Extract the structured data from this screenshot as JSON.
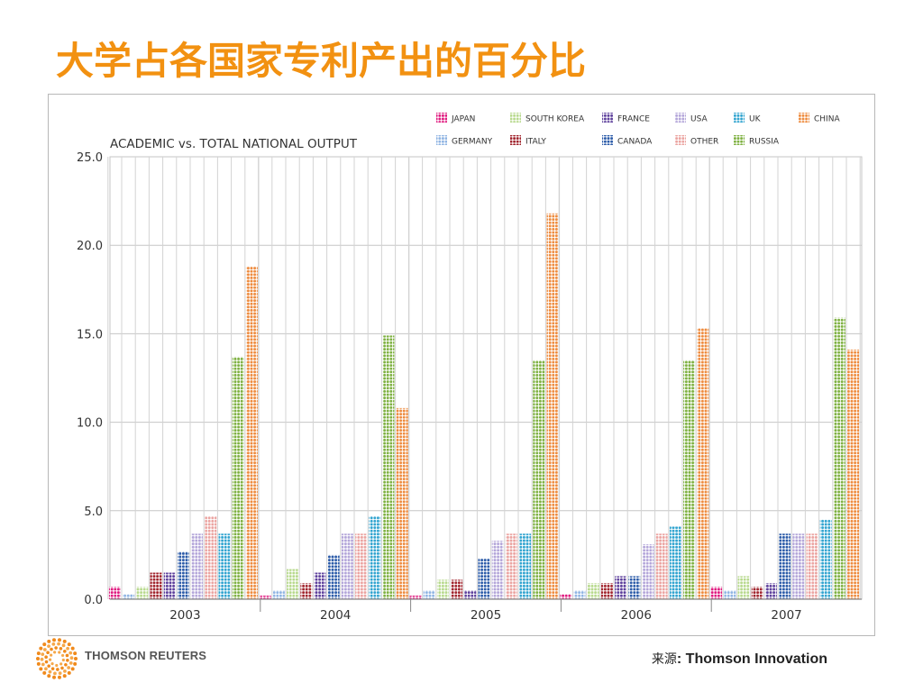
{
  "slide": {
    "title": "大学占各国家专利产出的百分比",
    "source_label": "来源",
    "source_value": ": Thomson Innovation",
    "logo_text": "THOMSON REUTERS",
    "logo_icon": "sunburst-logo-icon"
  },
  "chart_data": {
    "type": "bar",
    "title": "ACADEMIC vs. TOTAL NATIONAL OUTPUT",
    "xlabel": "",
    "ylabel": "",
    "ylim": [
      0,
      25
    ],
    "yticks": [
      "0.0",
      "5.0",
      "10.0",
      "15.0",
      "20.0",
      "25.0"
    ],
    "grid": true,
    "legend_position": "top-right",
    "bar_style": "dotted",
    "categories": [
      "2003",
      "2004",
      "2005",
      "2006",
      "2007"
    ],
    "series": [
      {
        "name": "JAPAN",
        "color": "#e0177e",
        "values": [
          0.7,
          0.2,
          0.2,
          0.3,
          0.7
        ]
      },
      {
        "name": "GERMANY",
        "color": "#8fb4e3",
        "values": [
          0.3,
          0.5,
          0.5,
          0.5,
          0.5
        ]
      },
      {
        "name": "SOUTH KOREA",
        "color": "#b7d98c",
        "values": [
          0.7,
          1.7,
          1.1,
          0.9,
          1.3
        ]
      },
      {
        "name": "ITALY",
        "color": "#a0222b",
        "values": [
          1.5,
          0.9,
          1.1,
          0.9,
          0.7
        ]
      },
      {
        "name": "FRANCE",
        "color": "#5c3e9b",
        "values": [
          1.5,
          1.5,
          0.5,
          1.3,
          0.9
        ]
      },
      {
        "name": "CANADA",
        "color": "#2a5aa8",
        "values": [
          2.7,
          2.5,
          2.3,
          1.3,
          3.7
        ]
      },
      {
        "name": "USA",
        "color": "#b3a5d9",
        "values": [
          3.7,
          3.7,
          3.3,
          3.1,
          3.7
        ]
      },
      {
        "name": "OTHER",
        "color": "#eba3a0",
        "values": [
          4.7,
          3.7,
          3.7,
          3.7,
          3.7
        ]
      },
      {
        "name": "UK",
        "color": "#2fa3cf",
        "values": [
          3.7,
          4.7,
          3.7,
          4.1,
          4.5
        ]
      },
      {
        "name": "RUSSIA",
        "color": "#7db03f",
        "values": [
          13.7,
          14.9,
          13.5,
          13.5,
          15.9
        ]
      },
      {
        "name": "CHINA",
        "color": "#ee8a3c",
        "values": [
          18.8,
          10.8,
          21.8,
          15.3,
          14.1
        ]
      }
    ],
    "legend_rows": [
      [
        "JAPAN",
        "SOUTH KOREA",
        "FRANCE",
        "USA",
        "UK",
        "CHINA"
      ],
      [
        "GERMANY",
        "ITALY",
        "CANADA",
        "OTHER",
        "RUSSIA"
      ]
    ]
  }
}
